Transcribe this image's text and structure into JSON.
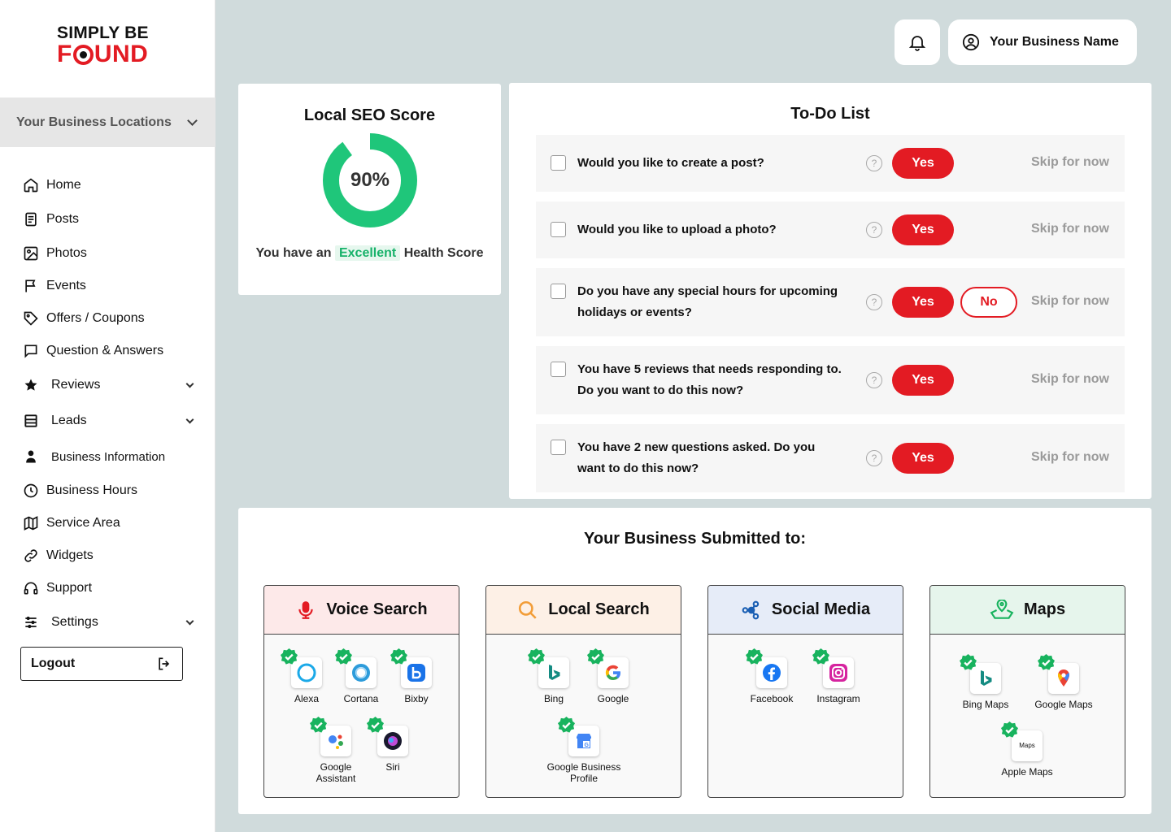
{
  "brand": {
    "line1": "SIMPLY BE",
    "line2_a": "F",
    "line2_b": "UND"
  },
  "locations_label": "Your Business Locations",
  "nav": [
    {
      "label": "Home",
      "icon": "home-icon"
    },
    {
      "label": "Posts",
      "icon": "posts-icon"
    },
    {
      "label": "Photos",
      "icon": "photo-icon"
    },
    {
      "label": "Events",
      "icon": "flag-icon"
    },
    {
      "label": "Offers / Coupons",
      "icon": "tag-icon"
    },
    {
      "label": "Question & Answers",
      "icon": "chat-icon"
    },
    {
      "label": "Reviews",
      "icon": "star-icon"
    },
    {
      "label": "Leads",
      "icon": "leads-icon"
    },
    {
      "label": "Business Information",
      "icon": "person-icon"
    },
    {
      "label": "Business Hours",
      "icon": "clock-icon"
    },
    {
      "label": "Service Area",
      "icon": "map-icon"
    },
    {
      "label": "Widgets",
      "icon": "link-icon"
    },
    {
      "label": "Support",
      "icon": "headset-icon"
    },
    {
      "label": "Settings",
      "icon": "sliders-icon"
    }
  ],
  "logout_label": "Logout",
  "header": {
    "business_name": "Your Business Name"
  },
  "seo": {
    "title": "Local SEO Score",
    "score_label": "90%",
    "score": 90,
    "health_prefix": "You have an",
    "health_value": "Excellent",
    "health_suffix": "Health Score",
    "ring_color": "#1fc67a"
  },
  "todo": {
    "title": "To-Do List",
    "yes_label": "Yes",
    "no_label": "No",
    "skip_label": "Skip for now",
    "items": [
      {
        "line1": "Would you like to create a post?",
        "line2": ""
      },
      {
        "line1": "Would you like to upload a photo?",
        "line2": ""
      },
      {
        "line1": "Do you have any special hours for upcoming",
        "line2": "holidays or events?"
      },
      {
        "line1": "You have 5 reviews that needs responding to.",
        "line2": "Do you want to do this now?"
      },
      {
        "line1": "You have 2 new questions asked.  Do you",
        "line2": "want to do this now?"
      }
    ]
  },
  "submitted": {
    "title": "Your Business Submitted to:",
    "categories": [
      {
        "name": "Voice Search",
        "header_color": "#fde9e9",
        "platforms": [
          "Alexa",
          "Cortana",
          "Bixby",
          "Google Assistant",
          "Siri"
        ]
      },
      {
        "name": "Local Search",
        "header_color": "#fdf0e6",
        "platforms": [
          "Bing",
          "Google",
          "Google Business Profile"
        ]
      },
      {
        "name": "Social Media",
        "header_color": "#e6ecf8",
        "platforms": [
          "Facebook",
          "Instagram"
        ]
      },
      {
        "name": "Maps",
        "header_color": "#e6f5ec",
        "platforms": [
          "Bing Maps",
          "Google Maps",
          "Apple Maps"
        ]
      }
    ],
    "google_assistant_l1": "Google",
    "google_assistant_l2": "Assistant",
    "gbp_l1": "Google Business",
    "gbp_l2": "Profile",
    "apple_maps_icon_text": "Maps"
  }
}
